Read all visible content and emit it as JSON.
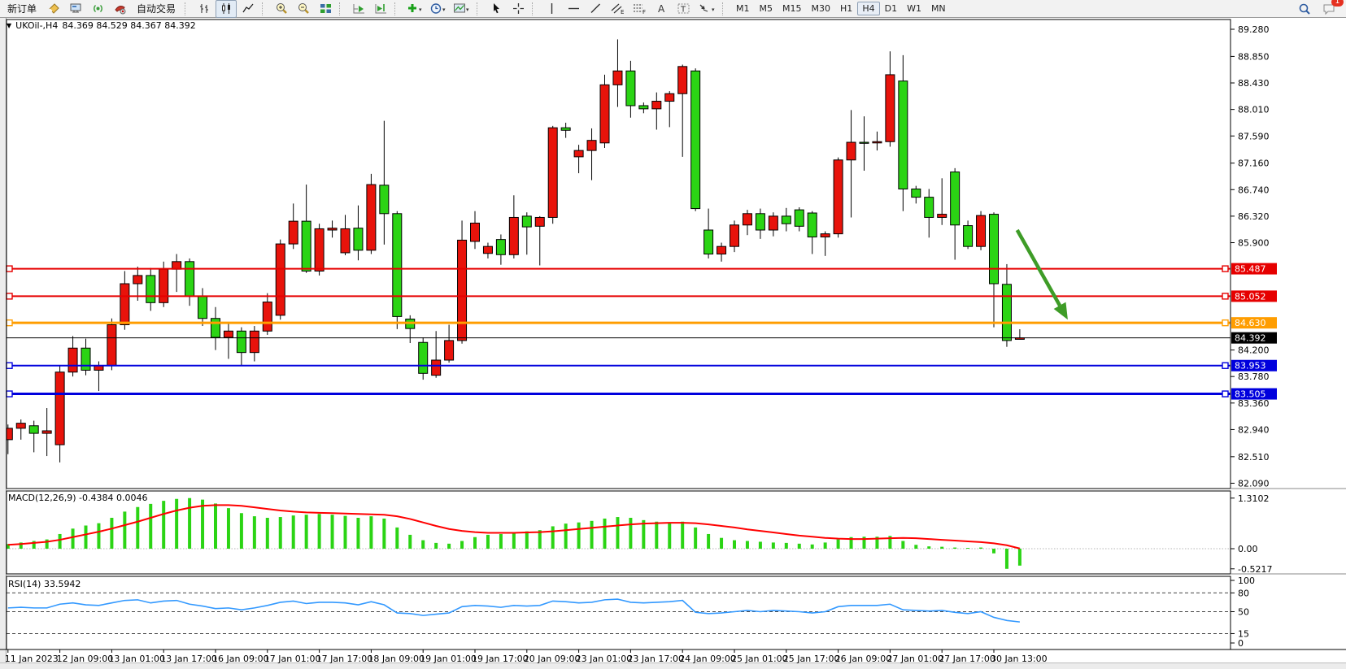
{
  "toolbar": {
    "new_order_label": "新订单",
    "autotrade_label": "自动交易",
    "timeframes": [
      "M1",
      "M5",
      "M15",
      "M30",
      "H1",
      "H4",
      "D1",
      "W1",
      "MN"
    ],
    "active_timeframe": "H4",
    "notification_count": "1",
    "icons": [
      "new-order-note-icon",
      "terminal-icon",
      "signal-icon",
      "autotrade-icon",
      "bar-chart-icon",
      "candlestick-chart-icon",
      "line-chart-icon",
      "zoom-in-icon",
      "zoom-out-icon",
      "tile-windows-icon",
      "auto-scroll-icon",
      "chart-shift-icon",
      "add-indicator-icon",
      "periods-clock-icon",
      "template-icon",
      "cursor-icon",
      "crosshair-icon",
      "vertical-line-icon",
      "horizontal-line-icon",
      "trendline-icon",
      "channel-icon",
      "fibonacci-icon",
      "text-icon",
      "text-label-icon",
      "shapes-arrow-icon",
      "search-icon",
      "chat-icon"
    ]
  },
  "header": {
    "symbol_title": "UKOil-,H4",
    "ohlc": "84.369 84.529 84.367 84.392"
  },
  "chart_data": {
    "type": "candlestick",
    "symbol": "UKOil-",
    "timeframe": "H4",
    "current_bar": {
      "open": 84.369,
      "high": 84.529,
      "low": 84.367,
      "close": 84.392
    },
    "colors": {
      "bull": "#e8130b",
      "bear": "#2bd414",
      "wick": "#000000",
      "macd_hist": "#2bd414",
      "macd_signal": "#ff0000",
      "rsi_line": "#3399ff",
      "arrow": "#3e9c27",
      "res_line": "#e60000",
      "pivot_line": "#ff9d00",
      "sup_line": "#0000dd",
      "bid_line": "#000000"
    },
    "price_axis": {
      "min": 82.09,
      "max": 89.28,
      "ticks": [
        "89.280",
        "88.850",
        "88.430",
        "88.010",
        "87.590",
        "87.160",
        "86.740",
        "86.320",
        "85.900",
        "84.200",
        "83.780",
        "83.360",
        "82.940",
        "82.510",
        "82.090"
      ]
    },
    "time_labels": [
      "11 Jan 2023",
      "12 Jan 09:00",
      "13 Jan 01:00",
      "13 Jan 17:00",
      "16 Jan 09:00",
      "17 Jan 01:00",
      "17 Jan 17:00",
      "18 Jan 09:00",
      "19 Jan 01:00",
      "19 Jan 17:00",
      "20 Jan 09:00",
      "23 Jan 01:00",
      "23 Jan 17:00",
      "24 Jan 09:00",
      "25 Jan 01:00",
      "25 Jan 17:00",
      "26 Jan 09:00",
      "27 Jan 01:00",
      "27 Jan 17:00",
      "30 Jan 13:00"
    ],
    "candles_per_label": 4,
    "candles": [
      [
        82.78,
        83.02,
        82.55,
        82.96
      ],
      [
        82.96,
        83.1,
        82.78,
        83.04
      ],
      [
        83.0,
        83.08,
        82.58,
        82.88
      ],
      [
        82.88,
        83.28,
        82.52,
        82.92
      ],
      [
        82.7,
        83.95,
        82.42,
        83.85
      ],
      [
        83.85,
        84.42,
        83.78,
        84.23
      ],
      [
        84.23,
        84.38,
        83.8,
        83.88
      ],
      [
        83.88,
        84.02,
        83.55,
        83.95
      ],
      [
        83.95,
        84.7,
        83.88,
        84.6
      ],
      [
        84.6,
        85.45,
        84.52,
        85.25
      ],
      [
        85.25,
        85.52,
        84.98,
        85.38
      ],
      [
        85.38,
        85.5,
        84.82,
        84.95
      ],
      [
        84.95,
        85.6,
        84.88,
        85.48
      ],
      [
        85.48,
        85.72,
        85.12,
        85.6
      ],
      [
        85.6,
        85.65,
        84.9,
        85.05
      ],
      [
        85.05,
        85.18,
        84.58,
        84.7
      ],
      [
        84.7,
        84.88,
        84.2,
        84.4
      ],
      [
        84.4,
        84.62,
        84.06,
        84.5
      ],
      [
        84.5,
        84.56,
        83.96,
        84.16
      ],
      [
        84.16,
        84.58,
        84.02,
        84.5
      ],
      [
        84.5,
        85.1,
        84.44,
        84.96
      ],
      [
        84.75,
        85.95,
        84.68,
        85.88
      ],
      [
        85.88,
        86.52,
        85.8,
        86.24
      ],
      [
        86.24,
        86.82,
        85.42,
        85.45
      ],
      [
        85.45,
        86.2,
        85.38,
        86.12
      ],
      [
        86.1,
        86.25,
        85.98,
        86.13
      ],
      [
        85.74,
        86.34,
        85.7,
        86.12
      ],
      [
        86.13,
        86.49,
        85.62,
        85.78
      ],
      [
        85.78,
        86.99,
        85.72,
        86.82
      ],
      [
        86.81,
        87.83,
        85.87,
        86.36
      ],
      [
        86.36,
        86.4,
        84.53,
        84.73
      ],
      [
        84.69,
        84.75,
        84.31,
        84.54
      ],
      [
        84.32,
        84.4,
        83.73,
        83.83
      ],
      [
        83.8,
        84.5,
        83.76,
        84.04
      ],
      [
        84.04,
        84.6,
        84.0,
        84.35
      ],
      [
        84.35,
        86.25,
        84.3,
        85.94
      ],
      [
        85.92,
        86.4,
        85.8,
        86.21
      ],
      [
        85.73,
        85.9,
        85.65,
        85.84
      ],
      [
        85.95,
        86.03,
        85.55,
        85.71
      ],
      [
        85.71,
        86.65,
        85.65,
        86.3
      ],
      [
        86.32,
        86.38,
        85.71,
        86.15
      ],
      [
        86.16,
        86.32,
        85.54,
        86.3
      ],
      [
        86.3,
        87.75,
        86.2,
        87.72
      ],
      [
        87.72,
        87.8,
        87.56,
        87.68
      ],
      [
        87.26,
        87.45,
        87.0,
        87.36
      ],
      [
        87.36,
        87.71,
        86.89,
        87.52
      ],
      [
        87.48,
        88.56,
        87.4,
        88.4
      ],
      [
        88.4,
        89.12,
        88.05,
        88.62
      ],
      [
        88.62,
        88.78,
        87.88,
        88.07
      ],
      [
        88.07,
        88.12,
        87.95,
        88.02
      ],
      [
        88.02,
        88.28,
        87.69,
        88.14
      ],
      [
        88.14,
        88.3,
        87.73,
        88.26
      ],
      [
        88.26,
        88.72,
        87.26,
        88.69
      ],
      [
        88.62,
        88.66,
        86.4,
        86.44
      ],
      [
        86.1,
        86.44,
        85.65,
        85.72
      ],
      [
        85.72,
        85.9,
        85.6,
        85.84
      ],
      [
        85.84,
        86.25,
        85.75,
        86.18
      ],
      [
        86.18,
        86.42,
        86.02,
        86.36
      ],
      [
        86.36,
        86.44,
        85.96,
        86.1
      ],
      [
        86.1,
        86.38,
        86.0,
        86.32
      ],
      [
        86.32,
        86.45,
        86.08,
        86.2
      ],
      [
        86.42,
        86.46,
        86.08,
        86.16
      ],
      [
        86.37,
        86.4,
        85.72,
        85.99
      ],
      [
        85.99,
        86.08,
        85.69,
        86.04
      ],
      [
        86.04,
        87.25,
        85.98,
        87.21
      ],
      [
        87.21,
        88.0,
        86.3,
        87.49
      ],
      [
        87.49,
        87.9,
        87.04,
        87.48
      ],
      [
        87.48,
        87.66,
        87.36,
        87.5
      ],
      [
        87.5,
        88.93,
        87.42,
        88.56
      ],
      [
        88.46,
        88.87,
        86.4,
        86.75
      ],
      [
        86.75,
        86.8,
        86.52,
        86.62
      ],
      [
        86.62,
        86.75,
        85.98,
        86.3
      ],
      [
        86.3,
        86.92,
        86.18,
        86.35
      ],
      [
        87.02,
        87.08,
        85.63,
        86.18
      ],
      [
        86.17,
        86.25,
        85.8,
        85.84
      ],
      [
        85.84,
        86.4,
        85.78,
        86.33
      ],
      [
        86.35,
        86.38,
        84.56,
        85.25
      ],
      [
        85.24,
        85.56,
        84.25,
        84.35
      ],
      [
        84.369,
        84.529,
        84.367,
        84.392
      ]
    ],
    "hlines": [
      {
        "price": 85.487,
        "label": "85.487",
        "color": "#e60000",
        "width": 2,
        "handles": true
      },
      {
        "price": 85.052,
        "label": "85.052",
        "color": "#e60000",
        "width": 2,
        "handles": true
      },
      {
        "price": 84.63,
        "label": "84.630",
        "color": "#ff9d00",
        "width": 3,
        "handles": true
      },
      {
        "price": 84.392,
        "label": "84.392",
        "color": "#000000",
        "width": 1,
        "handles": false
      },
      {
        "price": 83.953,
        "label": "83.953",
        "color": "#0000dd",
        "width": 2,
        "handles": true
      },
      {
        "price": 83.505,
        "label": "83.505",
        "color": "#0000dd",
        "width": 3,
        "handles": true
      }
    ],
    "annotations": [
      {
        "type": "arrow",
        "from_index": 77.8,
        "from_price": 86.1,
        "to_index": 81.7,
        "to_price": 84.68,
        "color": "#3e9c27",
        "width": 4.5
      }
    ],
    "macd": {
      "label_full": "MACD(12,26,9) -0.4384 0.0046",
      "scale_ticks": [
        "1.3102",
        "0.00",
        "-0.5217"
      ],
      "scale_values": [
        1.3102,
        0.0,
        -0.5217
      ],
      "histogram": [
        0.12,
        0.16,
        0.2,
        0.24,
        0.38,
        0.52,
        0.6,
        0.66,
        0.8,
        0.96,
        1.08,
        1.16,
        1.24,
        1.29,
        1.31,
        1.27,
        1.17,
        1.05,
        0.92,
        0.84,
        0.8,
        0.82,
        0.86,
        0.88,
        0.9,
        0.88,
        0.85,
        0.8,
        0.84,
        0.78,
        0.55,
        0.36,
        0.22,
        0.15,
        0.13,
        0.2,
        0.3,
        0.36,
        0.38,
        0.42,
        0.45,
        0.48,
        0.58,
        0.65,
        0.68,
        0.72,
        0.78,
        0.82,
        0.8,
        0.74,
        0.7,
        0.67,
        0.7,
        0.55,
        0.38,
        0.28,
        0.22,
        0.2,
        0.18,
        0.16,
        0.15,
        0.13,
        0.11,
        0.16,
        0.24,
        0.3,
        0.31,
        0.31,
        0.33,
        0.2,
        0.1,
        0.06,
        0.05,
        0.03,
        0.02,
        0.03,
        -0.12,
        -0.5217,
        -0.4384
      ],
      "signal": [
        0.1,
        0.12,
        0.15,
        0.18,
        0.23,
        0.3,
        0.37,
        0.44,
        0.52,
        0.61,
        0.7,
        0.8,
        0.9,
        0.99,
        1.06,
        1.11,
        1.13,
        1.13,
        1.11,
        1.07,
        1.03,
        0.99,
        0.96,
        0.94,
        0.93,
        0.92,
        0.91,
        0.9,
        0.89,
        0.88,
        0.84,
        0.77,
        0.68,
        0.59,
        0.51,
        0.46,
        0.43,
        0.41,
        0.41,
        0.41,
        0.42,
        0.43,
        0.45,
        0.48,
        0.51,
        0.54,
        0.57,
        0.6,
        0.63,
        0.65,
        0.66,
        0.67,
        0.67,
        0.66,
        0.63,
        0.59,
        0.55,
        0.5,
        0.46,
        0.42,
        0.38,
        0.34,
        0.31,
        0.28,
        0.26,
        0.25,
        0.25,
        0.26,
        0.27,
        0.28,
        0.27,
        0.25,
        0.23,
        0.21,
        0.19,
        0.17,
        0.14,
        0.09,
        0.0046
      ]
    },
    "rsi": {
      "label_full": "RSI(14) 33.5942",
      "scale_ticks": [
        "100",
        "80",
        "50",
        "15",
        "0"
      ],
      "scale_values": [
        100,
        80,
        50,
        15,
        0
      ],
      "levels": [
        80,
        50,
        15
      ],
      "values": [
        56,
        57,
        56,
        56,
        62,
        64,
        61,
        60,
        64,
        68,
        69,
        64,
        67,
        68,
        62,
        59,
        55,
        56,
        53,
        56,
        60,
        65,
        67,
        63,
        65,
        65,
        64,
        61,
        66,
        61,
        48,
        47,
        44,
        46,
        48,
        58,
        60,
        59,
        57,
        60,
        59,
        60,
        67,
        66,
        64,
        65,
        69,
        70,
        65,
        64,
        65,
        66,
        68,
        49,
        47,
        48,
        50,
        52,
        50,
        52,
        51,
        50,
        48,
        50,
        58,
        60,
        60,
        60,
        62,
        53,
        52,
        51,
        52,
        49,
        47,
        50,
        41,
        36,
        33.5942
      ]
    }
  }
}
